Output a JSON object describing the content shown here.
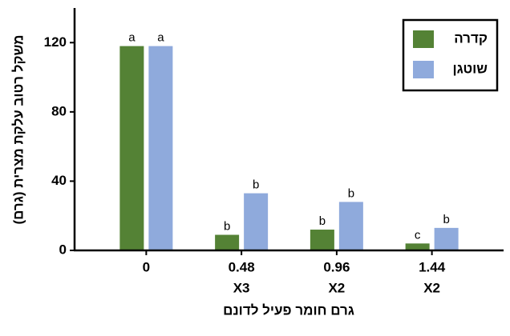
{
  "chart_data": {
    "type": "bar",
    "y_label": "משקל רטוב עלקת מצרית (גרם)",
    "x_label": "גרם חומר פעיל לדונם",
    "categories": [
      "0",
      "0.48",
      "0.96",
      "1.44"
    ],
    "category_sublabels": [
      null,
      "X3",
      "X2",
      "X2"
    ],
    "series": [
      {
        "name": "קדרה",
        "color": "#548235",
        "values": [
          118,
          9,
          12,
          4
        ],
        "annotations": [
          "a",
          "b",
          "b",
          "c"
        ]
      },
      {
        "name": "שוטגן",
        "color": "#8faadc",
        "values": [
          118,
          33,
          28,
          13
        ],
        "annotations": [
          "a",
          "b",
          "b",
          "b"
        ]
      }
    ],
    "ylim": [
      0,
      140
    ],
    "yticks": [
      0,
      40,
      80,
      120
    ],
    "legend": "top-right"
  }
}
